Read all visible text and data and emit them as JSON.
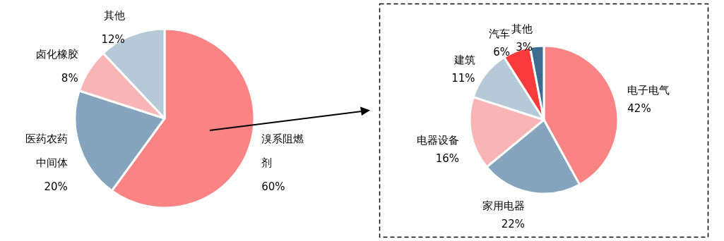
{
  "chart_data": [
    {
      "type": "pie",
      "categories": [
        "溴系阻燃剂",
        "医药农药中间体",
        "卤化橡胶",
        "其他"
      ],
      "values": [
        60,
        20,
        8,
        12
      ],
      "colors": [
        "#fa8483",
        "#84a5bd",
        "#f9b5b5",
        "#b5c9d6"
      ],
      "value_labels": [
        "60%",
        "20%",
        "8%",
        "12%"
      ],
      "data_labels": true,
      "legend": false
    },
    {
      "type": "pie",
      "categories": [
        "电子电气",
        "家用电器",
        "电器设备",
        "建筑",
        "汽车",
        "其他"
      ],
      "values": [
        42,
        22,
        16,
        11,
        6,
        3
      ],
      "colors": [
        "#fa8483",
        "#84a5bd",
        "#f9b5b5",
        "#b5c9d6",
        "#f93b3b",
        "#3c6c90"
      ],
      "value_labels": [
        "42%",
        "22%",
        "16%",
        "11%",
        "6%",
        "3%"
      ],
      "data_labels": true,
      "legend": false
    }
  ]
}
